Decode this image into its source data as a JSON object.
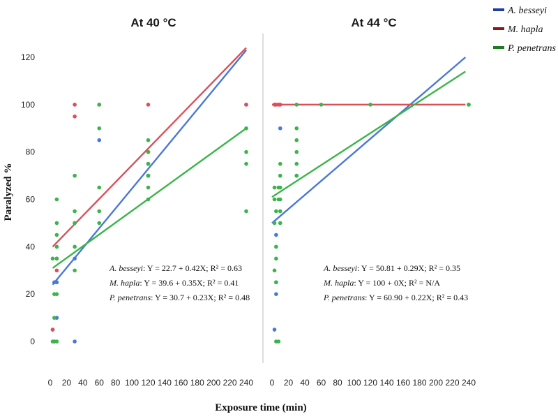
{
  "chart_data": {
    "type": "scatter",
    "ylabel": "Paralyzed %",
    "xlabel": "Exposure time (min)",
    "ylim": [
      0,
      120
    ],
    "xlim": [
      0,
      240
    ],
    "yticks": [
      "0",
      "20",
      "40",
      "60",
      "80",
      "100",
      "120"
    ],
    "xticks": [
      "0",
      "20",
      "40",
      "60",
      "80",
      "100",
      "120",
      "140",
      "160",
      "180",
      "200",
      "220",
      "240"
    ],
    "legend": {
      "position": "top-right",
      "entries": [
        {
          "name": "A. besseyi",
          "color": "#1f3f99"
        },
        {
          "name": "M. hapla",
          "color": "#8b1a1a"
        },
        {
          "name": "P. penetrans",
          "color": "#1e7d1e"
        }
      ]
    },
    "series_colors": {
      "A. besseyi": "#4a78d6",
      "M. hapla": "#d9505a",
      "P. penetrans": "#3cb44b"
    },
    "panels": [
      {
        "title": "At 40 °C",
        "lines": [
          {
            "series": "A. besseyi",
            "x": [
              3,
              240
            ],
            "y": [
              24,
              123
            ]
          },
          {
            "series": "M. hapla",
            "x": [
              3,
              240
            ],
            "y": [
              40,
              124
            ]
          },
          {
            "series": "P. penetrans",
            "x": [
              3,
              240
            ],
            "y": [
              31,
              90
            ]
          }
        ],
        "points": [
          {
            "series": "A. besseyi",
            "x": [
              3,
              5,
              8,
              8,
              30,
              30,
              60,
              120,
              120,
              240
            ],
            "y": [
              5,
              25,
              25,
              10,
              0,
              35,
              85,
              75,
              70,
              100
            ]
          },
          {
            "series": "M. hapla",
            "x": [
              3,
              5,
              8,
              8,
              30,
              30,
              30,
              60,
              120,
              120,
              240
            ],
            "y": [
              5,
              0,
              30,
              35,
              100,
              95,
              50,
              100,
              100,
              80,
              100
            ]
          },
          {
            "series": "P. penetrans",
            "x": [
              3,
              3,
              5,
              5,
              5,
              8,
              8,
              8,
              8,
              8,
              8,
              8,
              30,
              30,
              30,
              30,
              30,
              60,
              60,
              60,
              60,
              60,
              120,
              120,
              120,
              120,
              120,
              120,
              120,
              240,
              240,
              240,
              240
            ],
            "y": [
              0,
              35,
              0,
              10,
              20,
              20,
              35,
              40,
              45,
              50,
              60,
              0,
              30,
              40,
              55,
              70,
              50,
              55,
              50,
              65,
              90,
              100,
              60,
              65,
              70,
              75,
              80,
              85,
              70,
              55,
              75,
              80,
              90
            ]
          }
        ],
        "equations": [
          {
            "species": "A. besseyi",
            "formula": ": Y = 22.7 + 0.42X; R² = 0.63"
          },
          {
            "species": "M. hapla",
            "formula": ": Y = 39.6 + 0.35X; R² = 0.41"
          },
          {
            "species": "P. penetrans",
            "formula": ": Y = 30.7 + 0.23X; R² = 0.48"
          }
        ]
      },
      {
        "title": "At 44 °C",
        "lines": [
          {
            "series": "A. besseyi",
            "x": [
              0,
              236
            ],
            "y": [
              50,
              120
            ]
          },
          {
            "series": "M. hapla",
            "x": [
              0,
              236
            ],
            "y": [
              100,
              100
            ]
          },
          {
            "series": "P. penetrans",
            "x": [
              0,
              236
            ],
            "y": [
              61,
              114
            ]
          }
        ],
        "points": [
          {
            "series": "A. besseyi",
            "x": [
              3,
              5,
              5,
              5,
              10
            ],
            "y": [
              5,
              25,
              20,
              45,
              90
            ]
          },
          {
            "series": "M. hapla",
            "x": [
              3,
              5,
              8,
              10
            ],
            "y": [
              100,
              100,
              100,
              100
            ]
          },
          {
            "series": "P. penetrans",
            "x": [
              3,
              3,
              3,
              3,
              5,
              5,
              5,
              5,
              5,
              8,
              8,
              8,
              10,
              10,
              10,
              10,
              10,
              10,
              30,
              30,
              30,
              30,
              30,
              30,
              30,
              60,
              120,
              240,
              240
            ],
            "y": [
              65,
              60,
              50,
              30,
              0,
              25,
              35,
              40,
              55,
              0,
              60,
              65,
              50,
              55,
              60,
              65,
              70,
              75,
              70,
              75,
              80,
              85,
              90,
              100,
              70,
              100,
              100,
              100,
              100
            ]
          }
        ],
        "equations": [
          {
            "species": "A. besseyi",
            "formula": ": Y = 50.81 + 0.29X; R² = 0.35"
          },
          {
            "species": "M. hapla",
            "formula": ": Y = 100 + 0X; R² = N/A"
          },
          {
            "species": "P. penetrans",
            "formula": ": Y = 60.90 + 0.22X; R² = 0.43"
          }
        ]
      }
    ]
  }
}
